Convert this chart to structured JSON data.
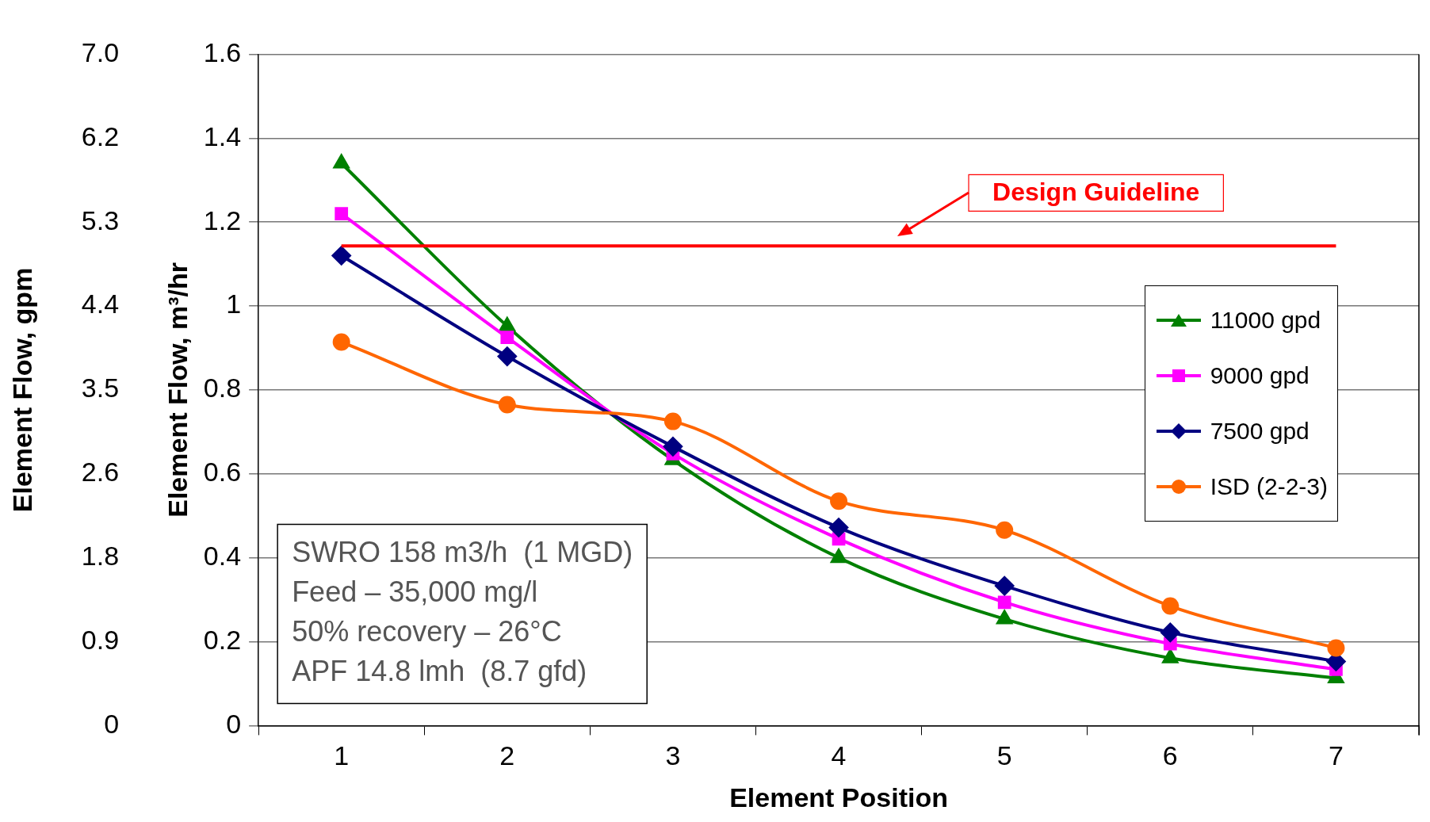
{
  "chart_data": {
    "type": "line",
    "xlabel": "Element Position",
    "ylabel": "Element Flow, m³/hr",
    "y2label": "Element Flow, gpm",
    "categories": [
      "1",
      "2",
      "3",
      "4",
      "5",
      "6",
      "7"
    ],
    "series": [
      {
        "name": "11000 gpd",
        "color": "#008000",
        "marker": "triangle",
        "values": [
          1.34,
          0.952,
          0.633,
          0.4,
          0.254,
          0.161,
          0.113
        ]
      },
      {
        "name": "9000 gpd",
        "color": "#ff00ff",
        "marker": "square",
        "values": [
          1.22,
          0.925,
          0.648,
          0.445,
          0.294,
          0.195,
          0.134
        ]
      },
      {
        "name": "7500 gpd",
        "color": "#000080",
        "marker": "diamond",
        "values": [
          1.12,
          0.88,
          0.665,
          0.472,
          0.333,
          0.222,
          0.153
        ]
      },
      {
        "name": "ISD (2-2-3)",
        "color": "#ff6600",
        "marker": "circle",
        "values": [
          0.914,
          0.765,
          0.725,
          0.535,
          0.466,
          0.285,
          0.185
        ]
      }
    ],
    "ylim": [
      0,
      1.6
    ],
    "yticks": [
      0,
      0.2,
      0.4,
      0.6,
      0.8,
      1,
      1.2,
      1.4,
      1.6
    ],
    "y2lim": [
      0,
      7.04
    ],
    "y2ticks": [
      0,
      {
        "value": 0.88,
        "label": "0.9"
      },
      {
        "value": 1.76,
        "label": "1.8"
      },
      {
        "value": 2.64,
        "label": "2.6"
      },
      {
        "value": 3.52,
        "label": "3.5"
      },
      {
        "value": 4.4,
        "label": "4.4"
      },
      {
        "value": 5.28,
        "label": "5.3"
      },
      {
        "value": 6.16,
        "label": "6.2"
      },
      {
        "value": 7.04,
        "label": "7.0"
      }
    ],
    "ref_lines": [
      {
        "axis": "y",
        "value": 1.143,
        "label": "Design Guideline",
        "color": "#ff0000",
        "line_style": "solid"
      }
    ],
    "annotations": [
      "SWRO 158 m3/h  (1 MGD)",
      "Feed – 35,000 mg/l",
      "50% recovery – 26°C",
      "APF 14.8 lmh  (8.7 gfd)"
    ],
    "grid": "y",
    "legend": "right",
    "line_style": "solid"
  }
}
